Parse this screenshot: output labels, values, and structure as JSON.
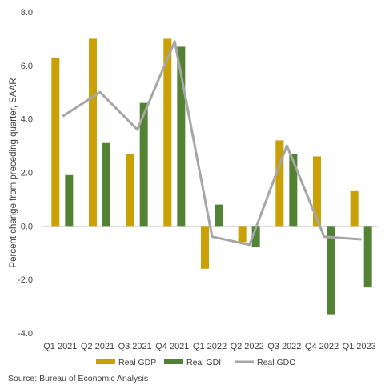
{
  "chart_data": {
    "type": "bar",
    "categories": [
      "Q1 2021",
      "Q2 2021",
      "Q3 2021",
      "Q4 2021",
      "Q1 2022",
      "Q2 2022",
      "Q3 2022",
      "Q4 2022",
      "Q1 2023"
    ],
    "series": [
      {
        "name": "Real GDP",
        "kind": "bar",
        "color": "#C9A006",
        "values": [
          6.3,
          7.0,
          2.7,
          7.0,
          -1.6,
          -0.6,
          3.2,
          2.6,
          1.3
        ]
      },
      {
        "name": "Real GDI",
        "kind": "bar",
        "color": "#548235",
        "values": [
          1.9,
          3.1,
          4.6,
          6.7,
          0.8,
          -0.8,
          2.7,
          -3.3,
          -2.3
        ]
      },
      {
        "name": "Real GDO",
        "kind": "line",
        "color": "#A6A6A6",
        "values": [
          4.1,
          5.0,
          3.6,
          6.9,
          -0.4,
          -0.7,
          3.0,
          -0.4,
          -0.5
        ]
      }
    ],
    "ylabel": "Percent change from preceding quarter, SAAR",
    "xlabel": "",
    "ylim": [
      -4.0,
      8.0
    ],
    "yticks": [
      "8.0",
      "6.0",
      "4.0",
      "2.0",
      "0.0",
      "-2.0",
      "-4.0"
    ],
    "ytick_values": [
      8,
      6,
      4,
      2,
      0,
      -2,
      -4
    ],
    "legend_position": "bottom",
    "grid": false
  },
  "source": "Source: Bureau of Economic Analysis"
}
